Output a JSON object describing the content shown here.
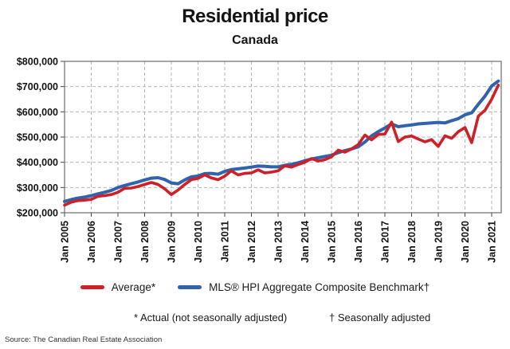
{
  "page": {
    "title": "Residential price",
    "subtitle": "Canada",
    "footnote_average": "* Actual (not seasonally adjusted)",
    "footnote_benchmark": "† Seasonally adjusted",
    "source": "Source: The Canadian Real Estate Association"
  },
  "legend": {
    "average_label": "Average*",
    "benchmark_label": "MLS® HPI Aggregate Composite Benchmark†"
  },
  "colors": {
    "average": "#cf2027",
    "benchmark": "#3063ac",
    "grid": "#b5b5b5",
    "border": "#6e6e6e",
    "tick": "#444444",
    "label": "#141414"
  },
  "chart_data": {
    "type": "line",
    "title": "Residential price",
    "subtitle": "Canada",
    "xlabel": "",
    "ylabel": "",
    "ylim": [
      200000,
      800000
    ],
    "y_tick_step": 100000,
    "y_tick_labels": [
      "$800,000",
      "$700,000",
      "$600,000",
      "$500,000",
      "$400,000",
      "$300,000",
      "$200,000"
    ],
    "x_tick_labels": [
      "Jan 2005",
      "Jan 2006",
      "Jan 2007",
      "Jan 2008",
      "Jan 2009",
      "Jan 2010",
      "Jan 2011",
      "Jan 2012",
      "Jan 2013",
      "Jan 2014",
      "Jan 2015",
      "Jan 2016",
      "Jan 2017",
      "Jan 2018",
      "Jan 2019",
      "Jan 2020",
      "Jan 2021"
    ],
    "grid": "dashed",
    "legend_position": "bottom",
    "x": [
      "2005-01",
      "2005-04",
      "2005-07",
      "2005-10",
      "2006-01",
      "2006-04",
      "2006-07",
      "2006-10",
      "2007-01",
      "2007-04",
      "2007-07",
      "2007-10",
      "2008-01",
      "2008-04",
      "2008-07",
      "2008-10",
      "2009-01",
      "2009-04",
      "2009-07",
      "2009-10",
      "2010-01",
      "2010-04",
      "2010-07",
      "2010-10",
      "2011-01",
      "2011-04",
      "2011-07",
      "2011-10",
      "2012-01",
      "2012-04",
      "2012-07",
      "2012-10",
      "2013-01",
      "2013-04",
      "2013-07",
      "2013-10",
      "2014-01",
      "2014-04",
      "2014-07",
      "2014-10",
      "2015-01",
      "2015-04",
      "2015-07",
      "2015-10",
      "2016-01",
      "2016-04",
      "2016-07",
      "2016-10",
      "2017-01",
      "2017-04",
      "2017-07",
      "2017-10",
      "2018-01",
      "2018-04",
      "2018-07",
      "2018-10",
      "2019-01",
      "2019-04",
      "2019-07",
      "2019-10",
      "2020-01",
      "2020-04",
      "2020-07",
      "2020-10",
      "2021-01",
      "2021-04"
    ],
    "series": [
      {
        "name": "Average*",
        "color": "#cf2027",
        "values": [
          230000,
          242000,
          248000,
          250000,
          253000,
          265000,
          268000,
          272000,
          281000,
          297000,
          298000,
          304000,
          312000,
          320000,
          312000,
          295000,
          272000,
          290000,
          312000,
          331000,
          336000,
          350000,
          338000,
          331000,
          345000,
          366000,
          350000,
          356000,
          358000,
          370000,
          358000,
          361000,
          366000,
          386000,
          381000,
          391000,
          400000,
          415000,
          405000,
          410000,
          422000,
          448000,
          440000,
          453000,
          470000,
          508000,
          489000,
          510000,
          512000,
          559000,
          482000,
          500000,
          504000,
          492000,
          481000,
          490000,
          463000,
          505000,
          495000,
          521000,
          538000,
          478000,
          583000,
          606000,
          650000,
          706000
        ]
      },
      {
        "name": "MLS® HPI Aggregate Composite Benchmark†",
        "color": "#3063ac",
        "values": [
          245000,
          252000,
          258000,
          262000,
          268000,
          275000,
          281000,
          288000,
          300000,
          308000,
          315000,
          322000,
          330000,
          337000,
          339000,
          332000,
          318000,
          315000,
          330000,
          342000,
          346000,
          355000,
          356000,
          353000,
          364000,
          371000,
          374000,
          377000,
          381000,
          385000,
          384000,
          382000,
          382000,
          388000,
          392000,
          398000,
          406000,
          413000,
          418000,
          423000,
          428000,
          438000,
          446000,
          453000,
          461000,
          480000,
          505000,
          521000,
          536000,
          552000,
          541000,
          545000,
          548000,
          552000,
          554000,
          556000,
          558000,
          556000,
          565000,
          573000,
          588000,
          596000,
          630000,
          662000,
          702000,
          722000
        ]
      }
    ]
  }
}
